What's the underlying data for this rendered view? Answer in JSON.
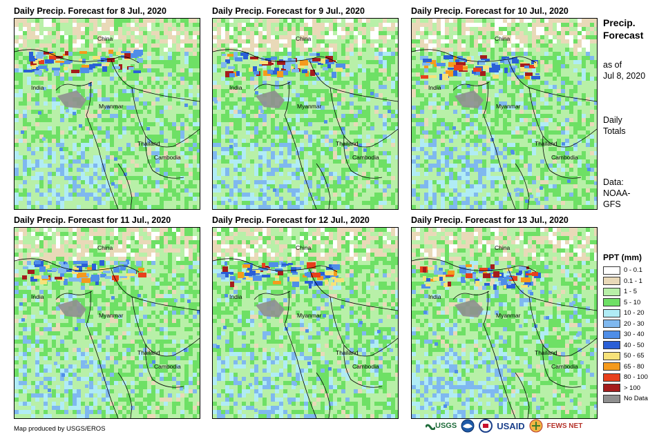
{
  "panels": [
    {
      "title": "Daily Precip. Forecast for 8 Jul., 2020",
      "rain": "n"
    },
    {
      "title": "Daily Precip. Forecast for 9 Jul., 2020",
      "rain": "n2"
    },
    {
      "title": "Daily Precip. Forecast for 10 Jul., 2020",
      "rain": "n3"
    },
    {
      "title": "Daily Precip. Forecast for 11 Jul., 2020",
      "rain": "n4"
    },
    {
      "title": "Daily Precip. Forecast for 12 Jul., 2020",
      "rain": "n5"
    },
    {
      "title": "Daily Precip. Forecast for 13 Jul., 2020",
      "rain": "n6"
    }
  ],
  "place_labels": {
    "china": "China",
    "india": "India",
    "myanmar": "Myanmar",
    "thailand": "Thailand",
    "cambodia": "Cambodia"
  },
  "sidebar": {
    "heading_line1": "Precip.",
    "heading_line2": "Forecast",
    "asof_line1": "as of",
    "asof_line2": "Jul 8, 2020",
    "daily_line1": "Daily",
    "daily_line2": "Totals",
    "data_line1": "Data:",
    "data_line2": "NOAA-",
    "data_line3": "GFS"
  },
  "legend": {
    "title": "PPT (mm)",
    "items": [
      {
        "label": "0 - 0.1",
        "color": "#ffffff"
      },
      {
        "label": "0.1 - 1",
        "color": "#e9d9b8"
      },
      {
        "label": "1 - 5",
        "color": "#b8f0a8"
      },
      {
        "label": "5 - 10",
        "color": "#6ee065"
      },
      {
        "label": "10 - 20",
        "color": "#b0ecf5"
      },
      {
        "label": "20 - 30",
        "color": "#7fb8ef"
      },
      {
        "label": "30 - 40",
        "color": "#4f8ee8"
      },
      {
        "label": "40 - 50",
        "color": "#2a5fd6"
      },
      {
        "label": "50 - 65",
        "color": "#f6e27a"
      },
      {
        "label": "65 - 80",
        "color": "#f59a1c"
      },
      {
        "label": "80 - 100",
        "color": "#e8401c"
      },
      {
        "label": "> 100",
        "color": "#a51c1c"
      },
      {
        "label": "No Data",
        "color": "#8f8f8f"
      }
    ]
  },
  "footer": {
    "credit": "Map produced by USGS/EROS",
    "logo_usgs": "USGS",
    "logo_usaid": "USAID",
    "logo_fews": "FEWS NET"
  }
}
